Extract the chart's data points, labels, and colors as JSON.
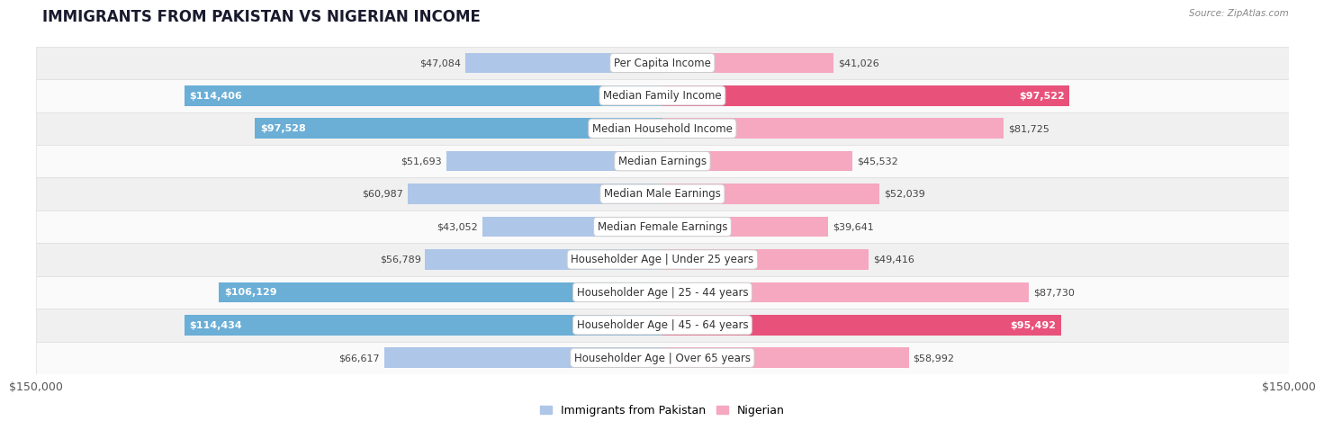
{
  "title": "IMMIGRANTS FROM PAKISTAN VS NIGERIAN INCOME",
  "source": "Source: ZipAtlas.com",
  "categories": [
    "Per Capita Income",
    "Median Family Income",
    "Median Household Income",
    "Median Earnings",
    "Median Male Earnings",
    "Median Female Earnings",
    "Householder Age | Under 25 years",
    "Householder Age | 25 - 44 years",
    "Householder Age | 45 - 64 years",
    "Householder Age | Over 65 years"
  ],
  "pakistan_values": [
    47084,
    114406,
    97528,
    51693,
    60987,
    43052,
    56789,
    106129,
    114434,
    66617
  ],
  "nigerian_values": [
    41026,
    97522,
    81725,
    45532,
    52039,
    39641,
    49416,
    87730,
    95492,
    58992
  ],
  "pakistan_labels": [
    "$47,084",
    "$114,406",
    "$97,528",
    "$51,693",
    "$60,987",
    "$43,052",
    "$56,789",
    "$106,129",
    "$114,434",
    "$66,617"
  ],
  "nigerian_labels": [
    "$41,026",
    "$97,522",
    "$81,725",
    "$45,532",
    "$52,039",
    "$39,641",
    "$49,416",
    "$87,730",
    "$95,492",
    "$58,992"
  ],
  "pakistan_color_light": "#aec6e8",
  "pakistan_color_dark": "#6baed6",
  "nigerian_color_light": "#f5a8c0",
  "nigerian_color_dark": "#e8527a",
  "pakistan_threshold": 90000,
  "nigerian_threshold": 90000,
  "max_value": 150000,
  "bar_height": 0.62,
  "row_bg_even": "#f0f0f0",
  "row_bg_odd": "#fafafa",
  "label_fontsize": 8.0,
  "category_fontsize": 8.5,
  "title_fontsize": 12,
  "legend_fontsize": 9,
  "axis_label": "$150,000",
  "background_color": "#ffffff"
}
